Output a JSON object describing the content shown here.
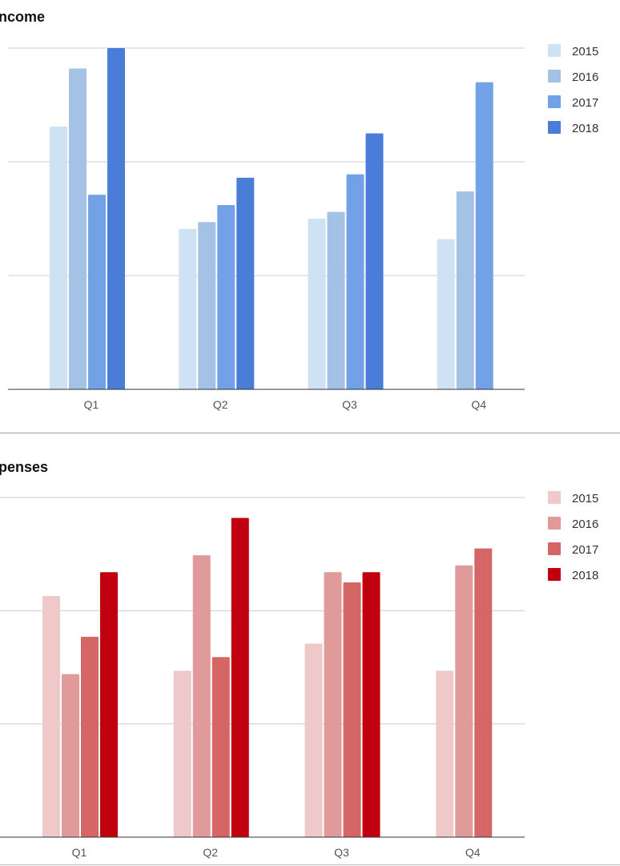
{
  "chart_data": [
    {
      "type": "bar",
      "title": "ncome",
      "categories": [
        "Q1",
        "Q2",
        "Q3",
        "Q4"
      ],
      "ylim": [
        0,
        100
      ],
      "grid": true,
      "legend": "right",
      "series": [
        {
          "name": "2015",
          "color": "#cfe2f3",
          "values": [
            77,
            47,
            50,
            44
          ]
        },
        {
          "name": "2016",
          "color": "#a4c2e6",
          "values": [
            94,
            49,
            52,
            58
          ]
        },
        {
          "name": "2017",
          "color": "#73a1e7",
          "values": [
            57,
            54,
            63,
            90
          ]
        },
        {
          "name": "2018",
          "color": "#4a7dd7",
          "values": [
            100,
            62,
            75,
            null
          ]
        }
      ]
    },
    {
      "type": "bar",
      "title": "penses",
      "categories": [
        "Q1",
        "Q2",
        "Q3",
        "Q4"
      ],
      "ylim": [
        0,
        100
      ],
      "grid": true,
      "legend": "right",
      "series": [
        {
          "name": "2015",
          "color": "#efc9c9",
          "values": [
            71,
            49,
            57,
            49
          ]
        },
        {
          "name": "2016",
          "color": "#e09a9a",
          "values": [
            48,
            83,
            78,
            80
          ]
        },
        {
          "name": "2017",
          "color": "#d46666",
          "values": [
            59,
            53,
            75,
            85
          ]
        },
        {
          "name": "2018",
          "color": "#c0000f",
          "values": [
            78,
            94,
            78,
            null
          ]
        }
      ]
    }
  ]
}
